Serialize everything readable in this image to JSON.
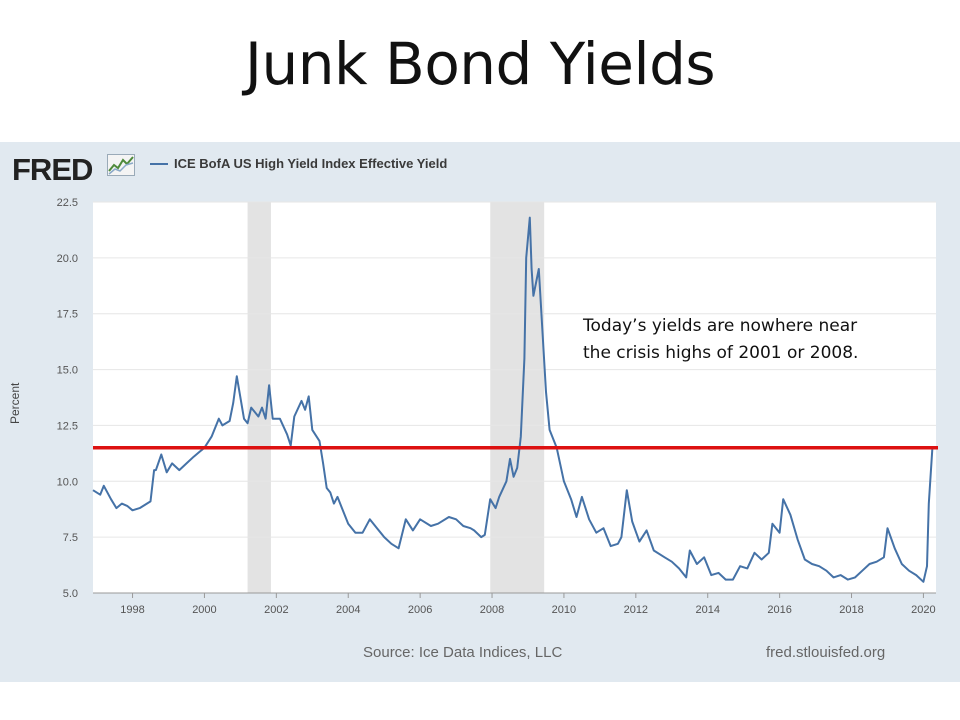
{
  "slide": {
    "title": "Junk Bond Yields",
    "annotation": "Today’s yields are nowhere near\nthe crisis highs of 2001 or 2008."
  },
  "fred": {
    "logo_text": "FRED",
    "source": "Source: Ice Data Indices, LLC",
    "site": "fred.stlouisfed.org"
  },
  "colors": {
    "series": "#4572a7",
    "reference_line": "#dd1111",
    "recession_shading": "#e3e3e3",
    "panel_background": "#e1e9f0"
  },
  "chart_data": {
    "type": "line",
    "ylabel": "Percent",
    "xlim": [
      1996.9,
      2020.35
    ],
    "ylim": [
      5.0,
      22.5
    ],
    "y_ticks": [
      "5.0",
      "7.5",
      "10.0",
      "12.5",
      "15.0",
      "17.5",
      "20.0",
      "22.5"
    ],
    "x_ticks": [
      "1998",
      "2000",
      "2002",
      "2004",
      "2006",
      "2008",
      "2010",
      "2012",
      "2014",
      "2016",
      "2018",
      "2020"
    ],
    "grid": "horizontal",
    "legend": "top-left",
    "recessions": [
      [
        2001.2,
        2001.85
      ],
      [
        2007.95,
        2009.45
      ]
    ],
    "reference_line": 11.5,
    "series": [
      {
        "name": "ICE BofA US High Yield Index Effective Yield",
        "x": [
          1996.9,
          1997.1,
          1997.2,
          1997.4,
          1997.55,
          1997.7,
          1997.85,
          1998.0,
          1998.2,
          1998.4,
          1998.5,
          1998.6,
          1998.65,
          1998.8,
          1998.95,
          1999.1,
          1999.3,
          1999.5,
          1999.7,
          1999.85,
          2000.0,
          2000.2,
          2000.4,
          2000.5,
          2000.7,
          2000.8,
          2000.9,
          2001.1,
          2001.2,
          2001.3,
          2001.5,
          2001.6,
          2001.7,
          2001.8,
          2001.9,
          2002.1,
          2002.3,
          2002.4,
          2002.5,
          2002.7,
          2002.8,
          2002.9,
          2003.0,
          2003.2,
          2003.3,
          2003.4,
          2003.5,
          2003.6,
          2003.7,
          2003.9,
          2004.0,
          2004.2,
          2004.4,
          2004.6,
          2004.8,
          2005.0,
          2005.2,
          2005.4,
          2005.6,
          2005.8,
          2006.0,
          2006.3,
          2006.5,
          2006.8,
          2007.0,
          2007.2,
          2007.4,
          2007.5,
          2007.7,
          2007.8,
          2007.95,
          2008.1,
          2008.2,
          2008.4,
          2008.5,
          2008.6,
          2008.7,
          2008.8,
          2008.9,
          2008.95,
          2009.05,
          2009.1,
          2009.15,
          2009.3,
          2009.5,
          2009.6,
          2009.8,
          2010.0,
          2010.2,
          2010.35,
          2010.5,
          2010.7,
          2010.9,
          2011.1,
          2011.3,
          2011.5,
          2011.6,
          2011.75,
          2011.9,
          2012.1,
          2012.3,
          2012.5,
          2012.8,
          2013.0,
          2013.2,
          2013.4,
          2013.5,
          2013.7,
          2013.9,
          2014.1,
          2014.3,
          2014.5,
          2014.7,
          2014.9,
          2015.1,
          2015.3,
          2015.5,
          2015.7,
          2015.8,
          2016.0,
          2016.1,
          2016.3,
          2016.5,
          2016.7,
          2016.9,
          2017.1,
          2017.3,
          2017.5,
          2017.7,
          2017.9,
          2018.1,
          2018.3,
          2018.5,
          2018.7,
          2018.9,
          2019.0,
          2019.2,
          2019.4,
          2019.6,
          2019.8,
          2020.0,
          2020.1,
          2020.15,
          2020.25
        ],
        "y": [
          9.6,
          9.4,
          9.8,
          9.2,
          8.8,
          9.0,
          8.9,
          8.7,
          8.8,
          9.0,
          9.1,
          10.5,
          10.5,
          11.2,
          10.4,
          10.8,
          10.5,
          10.8,
          11.1,
          11.3,
          11.5,
          12.0,
          12.8,
          12.5,
          12.7,
          13.5,
          14.7,
          12.8,
          12.6,
          13.3,
          12.9,
          13.3,
          12.8,
          14.3,
          12.8,
          12.8,
          12.1,
          11.6,
          12.9,
          13.6,
          13.2,
          13.8,
          12.3,
          11.8,
          10.8,
          9.7,
          9.5,
          9.0,
          9.3,
          8.5,
          8.1,
          7.7,
          7.7,
          8.3,
          7.9,
          7.5,
          7.2,
          7.0,
          8.3,
          7.8,
          8.3,
          8.0,
          8.1,
          8.4,
          8.3,
          8.0,
          7.9,
          7.8,
          7.5,
          7.6,
          9.2,
          8.8,
          9.3,
          10.0,
          11.0,
          10.2,
          10.6,
          12.0,
          15.5,
          20.0,
          21.8,
          19.5,
          18.3,
          19.5,
          14.0,
          12.3,
          11.5,
          10.0,
          9.2,
          8.4,
          9.3,
          8.3,
          7.7,
          7.9,
          7.1,
          7.2,
          7.5,
          9.6,
          8.2,
          7.3,
          7.8,
          6.9,
          6.6,
          6.4,
          6.1,
          5.7,
          6.9,
          6.3,
          6.6,
          5.8,
          5.9,
          5.6,
          5.6,
          6.2,
          6.1,
          6.8,
          6.5,
          6.8,
          8.1,
          7.7,
          9.2,
          8.5,
          7.4,
          6.5,
          6.3,
          6.2,
          6.0,
          5.7,
          5.8,
          5.6,
          5.7,
          6.0,
          6.3,
          6.4,
          6.6,
          7.9,
          7.0,
          6.3,
          6.0,
          5.8,
          5.5,
          6.2,
          9.0,
          11.5
        ]
      }
    ]
  }
}
